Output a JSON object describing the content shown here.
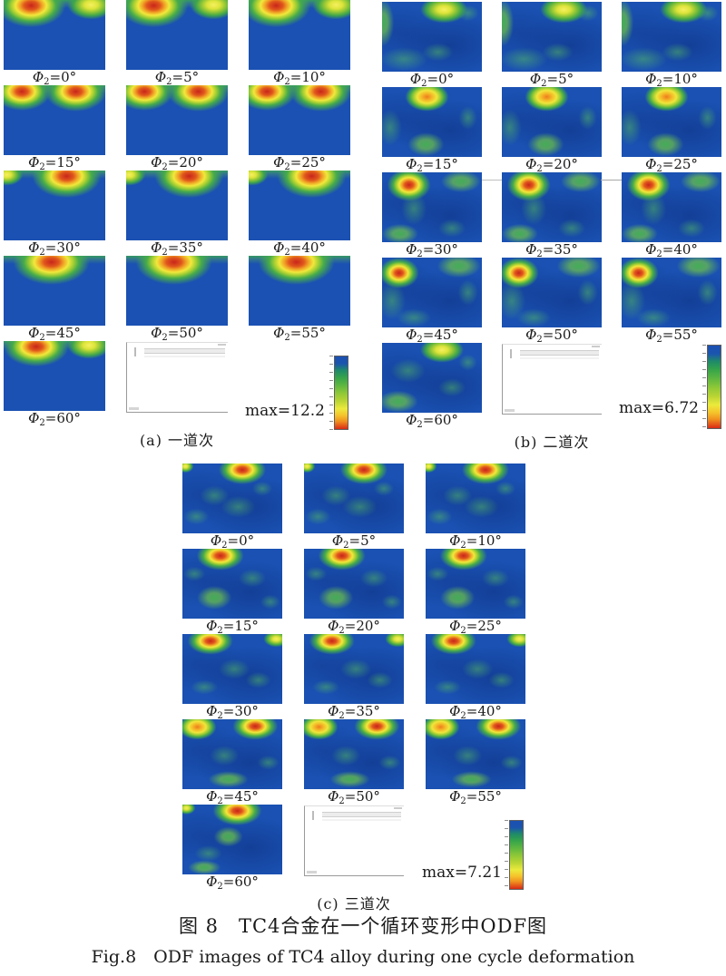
{
  "figure": {
    "caption_zh": "图 8　TC4合金在一个循环变形中ODF图",
    "caption_en": "Fig.8　ODF images of TC4 alloy during one cycle deformation"
  },
  "label_parts": {
    "symbol": "Φ",
    "subscript": "2",
    "equals": "=",
    "degree": "°"
  },
  "angles": [
    "0",
    "5",
    "10",
    "15",
    "20",
    "25",
    "30",
    "35",
    "40",
    "45",
    "50",
    "55",
    "60"
  ],
  "panels": [
    {
      "id": "a",
      "caption": "(a) 一道次",
      "max_label": "max=12.2"
    },
    {
      "id": "b",
      "caption": "(b) 二道次",
      "max_label": "max=6.72"
    },
    {
      "id": "c",
      "caption": "(c) 三道次",
      "max_label": "max=7.21"
    }
  ],
  "colors": {
    "map_base_blue": "#1a51b2",
    "scale_blue": "#1b50b2",
    "scale_green": "#46ab4b",
    "scale_yellow": "#f0ea3c",
    "scale_orange": "#f0931f",
    "scale_red": "#d92a16"
  }
}
